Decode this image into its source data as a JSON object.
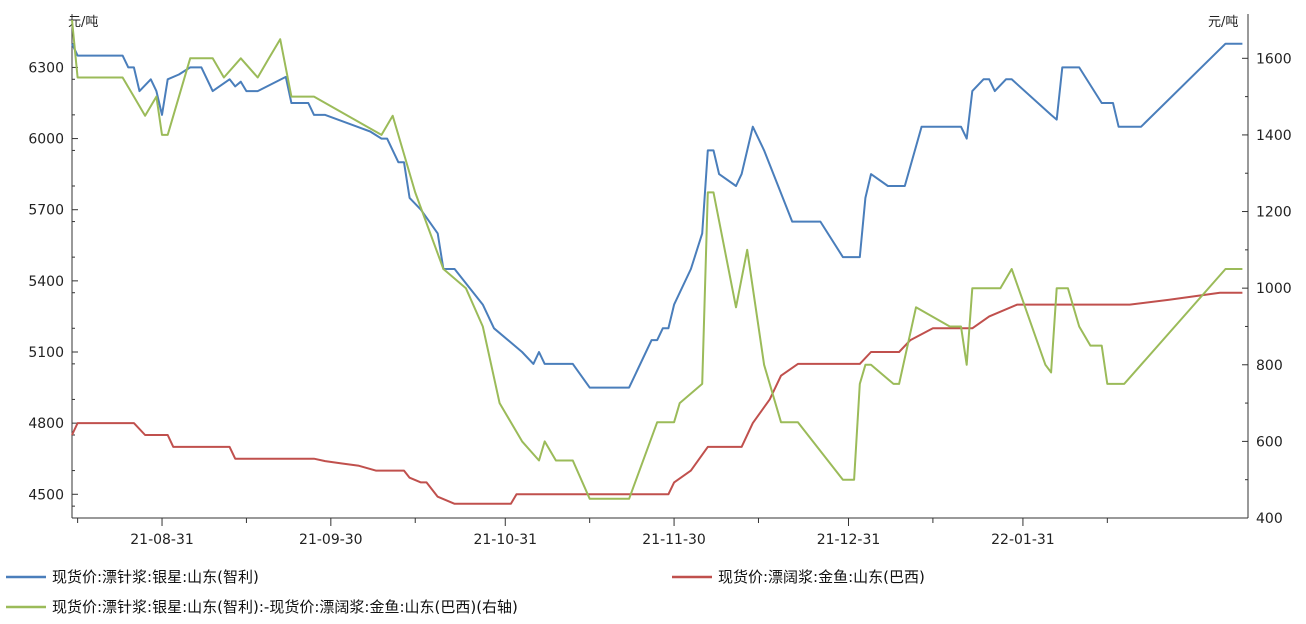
{
  "chart_data": {
    "type": "line",
    "title": "",
    "left_axis": {
      "unit": "元/吨",
      "ylim": [
        4400,
        6500
      ],
      "ticks": [
        4500,
        4800,
        5100,
        5400,
        5700,
        6000,
        6300
      ]
    },
    "right_axis": {
      "unit": "元/吨",
      "ylim": [
        400,
        1700
      ],
      "ticks": [
        400,
        600,
        800,
        1000,
        1200,
        1400,
        1600
      ]
    },
    "x_axis": {
      "tick_labels": [
        "21-08-31",
        "21-09-30",
        "21-10-31",
        "21-11-30",
        "21-12-31",
        "22-01-31"
      ]
    },
    "grid": false,
    "legend_position": "bottom",
    "series": [
      {
        "name": "现货价:漂针浆:银星:山东(智利)",
        "axis": "left",
        "color": "#4a7ebb",
        "points": [
          [
            "2021-08-15",
            6400
          ],
          [
            "2021-08-16",
            6350
          ],
          [
            "2021-08-24",
            6350
          ],
          [
            "2021-08-25",
            6300
          ],
          [
            "2021-08-26",
            6300
          ],
          [
            "2021-08-27",
            6200
          ],
          [
            "2021-08-29",
            6250
          ],
          [
            "2021-08-30",
            6200
          ],
          [
            "2021-08-31",
            6100
          ],
          [
            "2021-09-01",
            6250
          ],
          [
            "2021-09-03",
            6270
          ],
          [
            "2021-09-05",
            6300
          ],
          [
            "2021-09-07",
            6300
          ],
          [
            "2021-09-09",
            6200
          ],
          [
            "2021-09-12",
            6250
          ],
          [
            "2021-09-13",
            6220
          ],
          [
            "2021-09-14",
            6240
          ],
          [
            "2021-09-15",
            6200
          ],
          [
            "2021-09-17",
            6200
          ],
          [
            "2021-09-22",
            6260
          ],
          [
            "2021-09-23",
            6150
          ],
          [
            "2021-09-26",
            6150
          ],
          [
            "2021-09-27",
            6100
          ],
          [
            "2021-09-29",
            6100
          ],
          [
            "2021-10-07",
            6030
          ],
          [
            "2021-10-09",
            6000
          ],
          [
            "2021-10-10",
            6000
          ],
          [
            "2021-10-12",
            5900
          ],
          [
            "2021-10-13",
            5900
          ],
          [
            "2021-10-14",
            5750
          ],
          [
            "2021-10-16",
            5700
          ],
          [
            "2021-10-19",
            5600
          ],
          [
            "2021-10-20",
            5450
          ],
          [
            "2021-10-22",
            5450
          ],
          [
            "2021-10-27",
            5300
          ],
          [
            "2021-10-29",
            5200
          ],
          [
            "2021-11-03",
            5100
          ],
          [
            "2021-11-05",
            5050
          ],
          [
            "2021-11-06",
            5100
          ],
          [
            "2021-11-07",
            5050
          ],
          [
            "2021-11-12",
            5050
          ],
          [
            "2021-11-15",
            4950
          ],
          [
            "2021-11-22",
            4950
          ],
          [
            "2021-11-26",
            5150
          ],
          [
            "2021-11-27",
            5150
          ],
          [
            "2021-11-28",
            5200
          ],
          [
            "2021-11-29",
            5200
          ],
          [
            "2021-11-30",
            5300
          ],
          [
            "2021-12-03",
            5450
          ],
          [
            "2021-12-05",
            5600
          ],
          [
            "2021-12-06",
            5950
          ],
          [
            "2021-12-07",
            5950
          ],
          [
            "2021-12-08",
            5850
          ],
          [
            "2021-12-11",
            5800
          ],
          [
            "2021-12-12",
            5850
          ],
          [
            "2021-12-14",
            6050
          ],
          [
            "2021-12-16",
            5950
          ],
          [
            "2021-12-21",
            5650
          ],
          [
            "2021-12-26",
            5650
          ],
          [
            "2021-12-30",
            5500
          ],
          [
            "2022-01-02",
            5500
          ],
          [
            "2022-01-03",
            5750
          ],
          [
            "2022-01-04",
            5850
          ],
          [
            "2022-01-07",
            5800
          ],
          [
            "2022-01-10",
            5800
          ],
          [
            "2022-01-13",
            6050
          ],
          [
            "2022-01-18",
            6050
          ],
          [
            "2022-01-20",
            6050
          ],
          [
            "2022-01-21",
            6000
          ],
          [
            "2022-01-22",
            6200
          ],
          [
            "2022-01-24",
            6250
          ],
          [
            "2022-01-25",
            6250
          ],
          [
            "2022-01-26",
            6200
          ],
          [
            "2022-01-28",
            6250
          ],
          [
            "2022-01-29",
            6250
          ],
          [
            "2022-02-05",
            6100
          ],
          [
            "2022-02-06",
            6080
          ],
          [
            "2022-02-07",
            6300
          ],
          [
            "2022-02-10",
            6300
          ],
          [
            "2022-02-14",
            6150
          ],
          [
            "2022-02-16",
            6150
          ],
          [
            "2022-02-17",
            6050
          ],
          [
            "2022-02-21",
            6050
          ],
          [
            "2022-03-08",
            6400
          ],
          [
            "2022-03-11",
            6400
          ]
        ]
      },
      {
        "name": "现货价:漂阔浆:金鱼:山东(巴西)",
        "axis": "left",
        "color": "#c0504d",
        "points": [
          [
            "2021-08-15",
            4750
          ],
          [
            "2021-08-16",
            4800
          ],
          [
            "2021-08-26",
            4800
          ],
          [
            "2021-08-28",
            4750
          ],
          [
            "2021-09-01",
            4750
          ],
          [
            "2021-09-02",
            4700
          ],
          [
            "2021-09-12",
            4700
          ],
          [
            "2021-09-13",
            4650
          ],
          [
            "2021-09-27",
            4650
          ],
          [
            "2021-09-29",
            4640
          ],
          [
            "2021-10-02",
            4630
          ],
          [
            "2021-10-05",
            4620
          ],
          [
            "2021-10-08",
            4600
          ],
          [
            "2021-10-13",
            4600
          ],
          [
            "2021-10-14",
            4570
          ],
          [
            "2021-10-16",
            4550
          ],
          [
            "2021-10-17",
            4550
          ],
          [
            "2021-10-19",
            4490
          ],
          [
            "2021-10-22",
            4460
          ],
          [
            "2021-11-01",
            4460
          ],
          [
            "2021-11-02",
            4500
          ],
          [
            "2021-11-22",
            4500
          ],
          [
            "2021-11-25",
            4500
          ],
          [
            "2021-11-29",
            4500
          ],
          [
            "2021-11-30",
            4550
          ],
          [
            "2021-12-03",
            4600
          ],
          [
            "2021-12-06",
            4700
          ],
          [
            "2021-12-12",
            4700
          ],
          [
            "2021-12-14",
            4800
          ],
          [
            "2021-12-17",
            4900
          ],
          [
            "2021-12-19",
            5000
          ],
          [
            "2021-12-22",
            5050
          ],
          [
            "2021-12-25",
            5050
          ],
          [
            "2022-01-02",
            5050
          ],
          [
            "2022-01-04",
            5100
          ],
          [
            "2022-01-09",
            5100
          ],
          [
            "2022-01-11",
            5150
          ],
          [
            "2022-01-15",
            5200
          ],
          [
            "2022-01-22",
            5200
          ],
          [
            "2022-01-25",
            5250
          ],
          [
            "2022-01-30",
            5300
          ],
          [
            "2022-02-05",
            5300
          ],
          [
            "2022-02-12",
            5300
          ],
          [
            "2022-02-19",
            5300
          ],
          [
            "2022-02-26",
            5320
          ],
          [
            "2022-03-07",
            5350
          ],
          [
            "2022-03-11",
            5350
          ]
        ]
      },
      {
        "name": "现货价:漂针浆:银星:山东(智利):-现货价:漂阔浆:金鱼:山东(巴西)(右轴)",
        "axis": "right",
        "color": "#9bbb59",
        "points": [
          [
            "2021-08-15",
            1700
          ],
          [
            "2021-08-16",
            1550
          ],
          [
            "2021-08-24",
            1550
          ],
          [
            "2021-08-26",
            1500
          ],
          [
            "2021-08-28",
            1450
          ],
          [
            "2021-08-30",
            1500
          ],
          [
            "2021-08-31",
            1400
          ],
          [
            "2021-09-01",
            1400
          ],
          [
            "2021-09-05",
            1600
          ],
          [
            "2021-09-09",
            1600
          ],
          [
            "2021-09-11",
            1550
          ],
          [
            "2021-09-14",
            1600
          ],
          [
            "2021-09-17",
            1550
          ],
          [
            "2021-09-19",
            1600
          ],
          [
            "2021-09-21",
            1650
          ],
          [
            "2021-09-23",
            1500
          ],
          [
            "2021-09-27",
            1500
          ],
          [
            "2021-10-09",
            1400
          ],
          [
            "2021-10-11",
            1450
          ],
          [
            "2021-10-13",
            1350
          ],
          [
            "2021-10-15",
            1250
          ],
          [
            "2021-10-20",
            1050
          ],
          [
            "2021-10-24",
            1000
          ],
          [
            "2021-10-27",
            900
          ],
          [
            "2021-10-30",
            700
          ],
          [
            "2021-11-03",
            600
          ],
          [
            "2021-11-06",
            550
          ],
          [
            "2021-11-07",
            600
          ],
          [
            "2021-11-09",
            550
          ],
          [
            "2021-11-12",
            550
          ],
          [
            "2021-11-15",
            450
          ],
          [
            "2021-11-21",
            450
          ],
          [
            "2021-11-22",
            450
          ],
          [
            "2021-11-27",
            650
          ],
          [
            "2021-11-30",
            650
          ],
          [
            "2021-12-01",
            700
          ],
          [
            "2021-12-05",
            750
          ],
          [
            "2021-12-06",
            1250
          ],
          [
            "2021-12-07",
            1250
          ],
          [
            "2021-12-11",
            950
          ],
          [
            "2021-12-13",
            1100
          ],
          [
            "2021-12-16",
            800
          ],
          [
            "2021-12-19",
            650
          ],
          [
            "2021-12-22",
            650
          ],
          [
            "2021-12-30",
            500
          ],
          [
            "2022-01-01",
            500
          ],
          [
            "2022-01-02",
            750
          ],
          [
            "2022-01-03",
            800
          ],
          [
            "2022-01-04",
            800
          ],
          [
            "2022-01-08",
            750
          ],
          [
            "2022-01-09",
            750
          ],
          [
            "2022-01-12",
            950
          ],
          [
            "2022-01-18",
            900
          ],
          [
            "2022-01-20",
            900
          ],
          [
            "2022-01-21",
            800
          ],
          [
            "2022-01-22",
            1000
          ],
          [
            "2022-01-25",
            1000
          ],
          [
            "2022-01-27",
            1000
          ],
          [
            "2022-01-29",
            1050
          ],
          [
            "2022-02-04",
            800
          ],
          [
            "2022-02-05",
            780
          ],
          [
            "2022-02-06",
            1000
          ],
          [
            "2022-02-08",
            1000
          ],
          [
            "2022-02-10",
            900
          ],
          [
            "2022-02-12",
            850
          ],
          [
            "2022-02-14",
            850
          ],
          [
            "2022-02-15",
            750
          ],
          [
            "2022-02-18",
            750
          ],
          [
            "2022-03-08",
            1050
          ],
          [
            "2022-03-11",
            1050
          ]
        ]
      }
    ]
  }
}
